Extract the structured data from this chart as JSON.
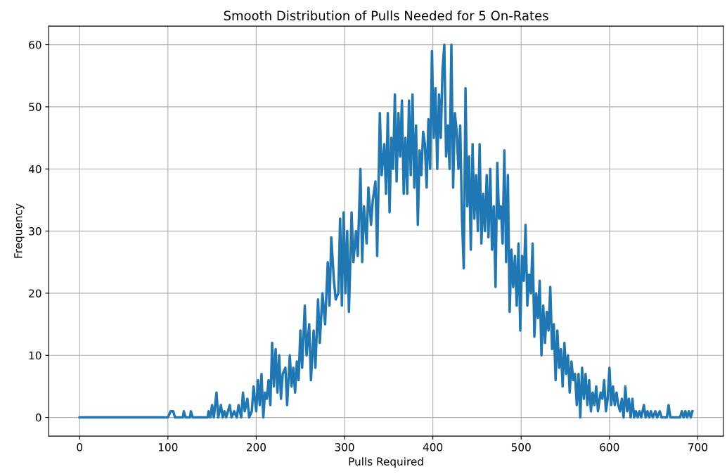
{
  "chart_data": {
    "type": "line",
    "title": "Smooth Distribution of Pulls Needed for 5 On-Rates",
    "xlabel": "Pulls Required",
    "ylabel": "Frequency",
    "xlim": [
      -35,
      729
    ],
    "ylim": [
      -3,
      63
    ],
    "xticks": [
      0,
      100,
      200,
      300,
      400,
      500,
      600,
      700
    ],
    "yticks": [
      0,
      10,
      20,
      30,
      40,
      50,
      60
    ],
    "grid": true,
    "series": [
      {
        "color": "#1f77b4",
        "x": [
          0,
          100,
          103,
          106,
          108,
          117,
          118,
          120,
          125,
          126,
          128,
          145,
          146,
          148,
          150,
          152,
          155,
          157,
          160,
          162,
          164,
          166,
          170,
          172,
          175,
          178,
          180,
          183,
          185,
          187,
          190,
          192,
          195,
          197,
          200,
          202,
          204,
          206,
          208,
          210,
          212,
          214,
          216,
          218,
          220,
          222,
          224,
          226,
          228,
          230,
          233,
          235,
          238,
          240,
          242,
          244,
          246,
          248,
          250,
          252,
          255,
          257,
          260,
          262,
          265,
          267,
          270,
          272,
          275,
          278,
          281,
          283,
          285,
          288,
          290,
          293,
          295,
          297,
          299,
          301,
          303,
          305,
          308,
          310,
          313,
          315,
          318,
          320,
          322,
          325,
          327,
          330,
          332,
          335,
          337,
          340,
          342,
          345,
          347,
          349,
          351,
          353,
          355,
          357,
          359,
          361,
          363,
          365,
          367,
          369,
          371,
          373,
          375,
          377,
          379,
          381,
          383,
          385,
          387,
          389,
          391,
          393,
          395,
          397,
          399,
          401,
          403,
          405,
          407,
          409,
          411,
          413,
          415,
          417,
          419,
          421,
          423,
          425,
          427,
          429,
          431,
          433,
          435,
          437,
          439,
          441,
          443,
          445,
          447,
          449,
          451,
          453,
          455,
          457,
          459,
          461,
          463,
          465,
          467,
          469,
          471,
          473,
          475,
          477,
          479,
          481,
          483,
          485,
          487,
          489,
          491,
          493,
          495,
          497,
          499,
          501,
          503,
          505,
          507,
          509,
          511,
          513,
          515,
          517,
          519,
          521,
          523,
          525,
          527,
          529,
          531,
          533,
          535,
          537,
          539,
          541,
          543,
          545,
          547,
          549,
          551,
          553,
          555,
          557,
          559,
          561,
          563,
          565,
          567,
          569,
          571,
          573,
          575,
          577,
          579,
          581,
          583,
          585,
          587,
          590,
          592,
          594,
          596,
          598,
          600,
          602,
          604,
          606,
          608,
          610,
          612,
          614,
          616,
          618,
          620,
          622,
          624,
          626,
          628,
          630,
          632,
          634,
          636,
          639,
          641,
          643,
          645,
          647,
          649,
          652,
          654,
          657,
          659,
          665,
          667,
          669,
          680,
          682,
          684,
          686,
          688,
          690,
          692,
          694
        ],
        "values": [
          0,
          0,
          1,
          1,
          0,
          0,
          1,
          0,
          0,
          1,
          0,
          0,
          1,
          0,
          2,
          0,
          4,
          0,
          2,
          0,
          1,
          0,
          2,
          0,
          1,
          0,
          2,
          0,
          4,
          1,
          3,
          0,
          1,
          5,
          1,
          6,
          2,
          7,
          0,
          4,
          3,
          6,
          2,
          12,
          5,
          11,
          4,
          10,
          3,
          7,
          8,
          2,
          10,
          5,
          8,
          4,
          9,
          6,
          14,
          8,
          18,
          10,
          15,
          6,
          14,
          8,
          19,
          12,
          20,
          15,
          25,
          18,
          29,
          22,
          19,
          20,
          32,
          18,
          33,
          20,
          30,
          17,
          33,
          25,
          30,
          26,
          40,
          25,
          34,
          28,
          37,
          31,
          35,
          38,
          26,
          49,
          39,
          44,
          36,
          49,
          33,
          45,
          40,
          52,
          38,
          49,
          42,
          51,
          36,
          45,
          36,
          51,
          39,
          52,
          37,
          47,
          31,
          43,
          39,
          46,
          44,
          37,
          48,
          40,
          59,
          45,
          53,
          40,
          52,
          45,
          56,
          60,
          42,
          47,
          40,
          60,
          37,
          49,
          46,
          40,
          47,
          32,
          24,
          53,
          34,
          42,
          27,
          44,
          32,
          39,
          30,
          44,
          28,
          36,
          30,
          39,
          29,
          40,
          27,
          34,
          21,
          41,
          32,
          34,
          28,
          43,
          25,
          39,
          17,
          27,
          21,
          26,
          18,
          28,
          14,
          26,
          22,
          31,
          18,
          23,
          20,
          28,
          13,
          20,
          16,
          22,
          10,
          18,
          12,
          17,
          14,
          21,
          11,
          15,
          6,
          14,
          8,
          11,
          5,
          12,
          7,
          10,
          4,
          9,
          6,
          7,
          2,
          7,
          0,
          8,
          3,
          7,
          2,
          6,
          1,
          4,
          2,
          5,
          1,
          4,
          3,
          6,
          1,
          3,
          8,
          2,
          5,
          2,
          4,
          2,
          1,
          3,
          0,
          5,
          1,
          3,
          0,
          3,
          0,
          1,
          0,
          1,
          0,
          2,
          0,
          1,
          0,
          1,
          0,
          1,
          0,
          1,
          0,
          0,
          2,
          0,
          0,
          1,
          0,
          1,
          0,
          1,
          0,
          1
        ]
      }
    ]
  }
}
